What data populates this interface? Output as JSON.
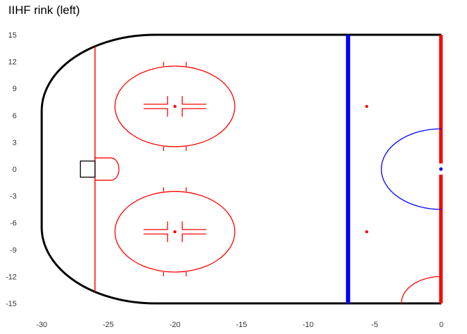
{
  "title": "IIHF rink (left)",
  "chart_data": {
    "type": "rink-diagram",
    "title": "IIHF rink (left)",
    "xlim": [
      -30,
      0
    ],
    "ylim": [
      -15,
      15
    ],
    "x_ticks": [
      -30,
      -25,
      -20,
      -15,
      -10,
      -5,
      0
    ],
    "y_ticks": [
      15,
      12,
      9,
      6,
      3,
      0,
      -3,
      -6,
      -9,
      -12,
      -15
    ],
    "x_tick_labels": [
      "-30",
      "-25",
      "-20",
      "-15",
      "-10",
      "-5",
      "0"
    ],
    "y_tick_labels": [
      "15",
      "12",
      "9",
      "6",
      "3",
      "0",
      "-3",
      "-6",
      "-9",
      "-12",
      "-15"
    ],
    "colors": {
      "boards": "#000000",
      "red": "#ff0000",
      "blue": "#0000ff",
      "crease": "#ff0000"
    },
    "boards": {
      "x_min": -30,
      "x_max": 0,
      "y_half": 15,
      "corner_radius": 8.5
    },
    "goal_line_x": -26,
    "blue_line_x": -7,
    "center_line_x": 0,
    "faceoff_circles": [
      {
        "cx": -20,
        "cy": 7,
        "rx": 4.5,
        "ry": 4.5
      },
      {
        "cx": -20,
        "cy": -7,
        "rx": 4.5,
        "ry": 4.5
      }
    ],
    "neutral_dots": [
      {
        "x": -5.6,
        "y": 7
      },
      {
        "x": -5.6,
        "y": -7
      }
    ],
    "center_circle": {
      "cx": 0,
      "r": 4.5
    },
    "referee_crease": {
      "cx": 0,
      "cy": -15,
      "r": 3
    },
    "goal_crease": {
      "x": -26,
      "half_width": 1.25,
      "depth": 1.8
    },
    "goal_net": {
      "x": -26,
      "half_width": 0.9,
      "depth": 1.1
    }
  }
}
